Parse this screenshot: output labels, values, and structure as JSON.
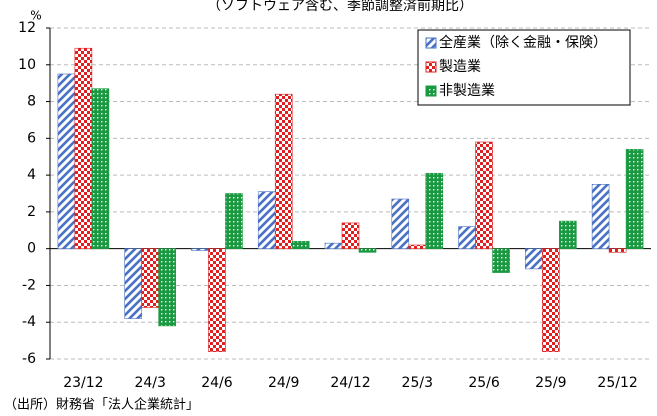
{
  "chart_data": {
    "type": "bar",
    "title": "（ソフトウェア含む、季節調整済前期比）",
    "y_unit": "%",
    "source": "（出所）財務省「法人企業統計」",
    "categories": [
      "23/12",
      "24/3",
      "24/6",
      "24/9",
      "24/12",
      "25/3",
      "25/6",
      "25/9",
      "25/12"
    ],
    "series": [
      {
        "name": "全産業（除く金融・保険）",
        "color": "#4a72c4",
        "pattern": "stripes",
        "values": [
          9.5,
          -3.8,
          -0.1,
          3.1,
          0.3,
          2.7,
          1.2,
          -1.1,
          3.5
        ]
      },
      {
        "name": "製造業",
        "color": "#e02020",
        "pattern": "checker",
        "values": [
          10.9,
          -3.2,
          -5.6,
          8.4,
          1.4,
          0.2,
          5.8,
          -5.6,
          -0.2
        ]
      },
      {
        "name": "非製造業",
        "color": "#1a9a40",
        "pattern": "dots",
        "values": [
          8.7,
          -4.2,
          3.0,
          0.4,
          -0.2,
          4.1,
          -1.3,
          1.5,
          5.4
        ]
      }
    ],
    "ylim": [
      -6,
      12
    ],
    "yticks": [
      -6,
      -4,
      -2,
      0,
      2,
      4,
      6,
      8,
      10,
      12
    ],
    "grid": true,
    "legend": "upper right"
  }
}
